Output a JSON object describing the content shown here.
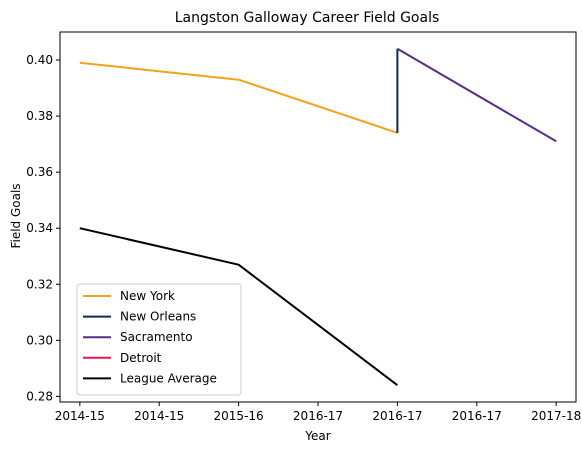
{
  "chart_data": {
    "type": "line",
    "title": "Langston Galloway Career Field Goals",
    "xlabel": "Year",
    "ylabel": "Field Goals",
    "x_tick_labels": [
      "2014-15",
      "2014-15",
      "2015-16",
      "2016-17",
      "2016-17",
      "2016-17",
      "2017-18"
    ],
    "y_ticks": [
      0.28,
      0.3,
      0.32,
      0.34,
      0.36,
      0.38,
      0.4
    ],
    "xlim": [
      -0.25,
      6.25
    ],
    "ylim": [
      0.278,
      0.41
    ],
    "grid": false,
    "legend_position": "lower-left",
    "series": [
      {
        "name": "New York",
        "color": "#f5a11d",
        "x": [
          0,
          2,
          4
        ],
        "y": [
          0.399,
          0.393,
          0.374
        ]
      },
      {
        "name": "New Orleans",
        "color": "#0e2a52",
        "x": [
          4,
          4
        ],
        "y": [
          0.374,
          0.404
        ]
      },
      {
        "name": "Sacramento",
        "color": "#5b2d82",
        "x": [
          4,
          6
        ],
        "y": [
          0.404,
          0.371
        ]
      },
      {
        "name": "Detroit",
        "color": "#e31b4c",
        "x": [],
        "y": []
      },
      {
        "name": "League Average",
        "color": "#000000",
        "x": [
          0,
          2,
          4
        ],
        "y": [
          0.34,
          0.327,
          0.284
        ]
      }
    ]
  }
}
